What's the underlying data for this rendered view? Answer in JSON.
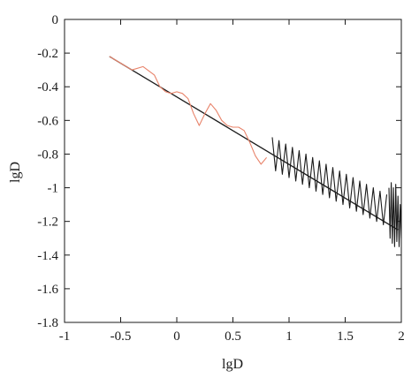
{
  "chart_data": {
    "type": "line",
    "title": "",
    "xlabel": "lgD",
    "ylabel": "lgD",
    "xlim": [
      -1,
      2
    ],
    "ylim": [
      -1.8,
      0
    ],
    "x_ticks": [
      -1,
      -0.5,
      0,
      0.5,
      1,
      1.5,
      2
    ],
    "x_tick_labels": [
      "-1",
      "-0.5",
      "0",
      "0.5",
      "1",
      "1.5",
      "2"
    ],
    "y_ticks": [
      0,
      -0.2,
      -0.4,
      -0.6,
      -0.8,
      -1,
      -1.2,
      -1.4,
      -1.6,
      -1.8
    ],
    "y_tick_labels": [
      "0",
      "-0.2",
      "-0.4",
      "-0.6",
      "-0.8",
      "-1",
      "-1.2",
      "-1.4",
      "-1.6",
      "-1.8"
    ],
    "grid": false,
    "legend": "none",
    "colors": {
      "fit_line": "#1a1a1a",
      "oscillation_orange": "#e8836a",
      "oscillation_black": "#1a1a1a",
      "axes": "#1a1a1a"
    },
    "series": [
      {
        "type": "line",
        "color": "#1a1a1a",
        "x": [
          -0.6,
          1.97
        ],
        "y": [
          -0.22,
          -1.25
        ]
      },
      {
        "type": "line",
        "color": "#e8836a",
        "x": [
          -0.6,
          -0.5,
          -0.4,
          -0.3,
          -0.2,
          -0.15,
          -0.1,
          -0.05,
          0.0,
          0.05,
          0.1,
          0.15,
          0.2,
          0.25,
          0.3,
          0.35,
          0.4,
          0.45,
          0.5,
          0.55,
          0.6,
          0.65,
          0.7,
          0.75,
          0.8
        ],
        "y": [
          -0.22,
          -0.26,
          -0.3,
          -0.28,
          -0.33,
          -0.4,
          -0.43,
          -0.44,
          -0.43,
          -0.44,
          -0.47,
          -0.56,
          -0.63,
          -0.56,
          -0.5,
          -0.54,
          -0.6,
          -0.63,
          -0.64,
          -0.64,
          -0.66,
          -0.73,
          -0.81,
          -0.86,
          -0.82
        ]
      },
      {
        "type": "line",
        "color": "#1a1a1a",
        "x": [
          0.85,
          0.88,
          0.91,
          0.94,
          0.97,
          1.0,
          1.03,
          1.06,
          1.09,
          1.12,
          1.15,
          1.18,
          1.21,
          1.24,
          1.27,
          1.3,
          1.33,
          1.36,
          1.39,
          1.42,
          1.45,
          1.48,
          1.51,
          1.54,
          1.57,
          1.6,
          1.63,
          1.66,
          1.69,
          1.72,
          1.75,
          1.78,
          1.81,
          1.84,
          1.87
        ],
        "y": [
          -0.7,
          -0.9,
          -0.72,
          -0.92,
          -0.74,
          -0.94,
          -0.76,
          -0.96,
          -0.78,
          -0.98,
          -0.8,
          -1.0,
          -0.82,
          -1.02,
          -0.84,
          -1.04,
          -0.86,
          -1.06,
          -0.88,
          -1.08,
          -0.9,
          -1.1,
          -0.92,
          -1.12,
          -0.94,
          -1.14,
          -0.96,
          -1.16,
          -0.98,
          -1.18,
          -1.0,
          -1.2,
          -1.02,
          -1.22,
          -1.04
        ]
      },
      {
        "type": "line",
        "color": "#1a1a1a",
        "x": [
          1.89,
          1.9,
          1.91,
          1.92,
          1.93,
          1.94,
          1.95,
          1.96,
          1.97,
          1.98,
          1.99,
          2.0
        ],
        "y": [
          -1.0,
          -1.3,
          -0.97,
          -1.33,
          -1.0,
          -1.35,
          -0.98,
          -1.32,
          -1.05,
          -1.35,
          -1.1,
          -1.3
        ]
      }
    ]
  }
}
